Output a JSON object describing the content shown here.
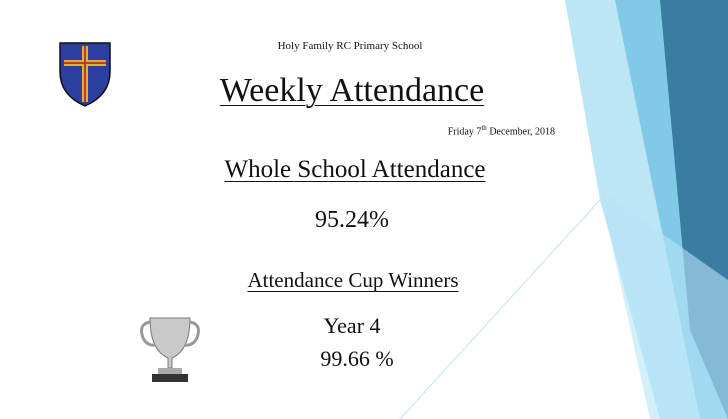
{
  "header": {
    "school": "Holy Family RC Primary School",
    "title": "Weekly Attendance",
    "date": {
      "main": "Friday 7",
      "suffix": "th",
      "rest": " December, 2018"
    }
  },
  "whole_school": {
    "heading": "Whole School Attendance",
    "value": "95.24%"
  },
  "cup": {
    "heading": "Attendance Cup Winners",
    "winner": "Year 4",
    "value": "99.66 %"
  }
}
